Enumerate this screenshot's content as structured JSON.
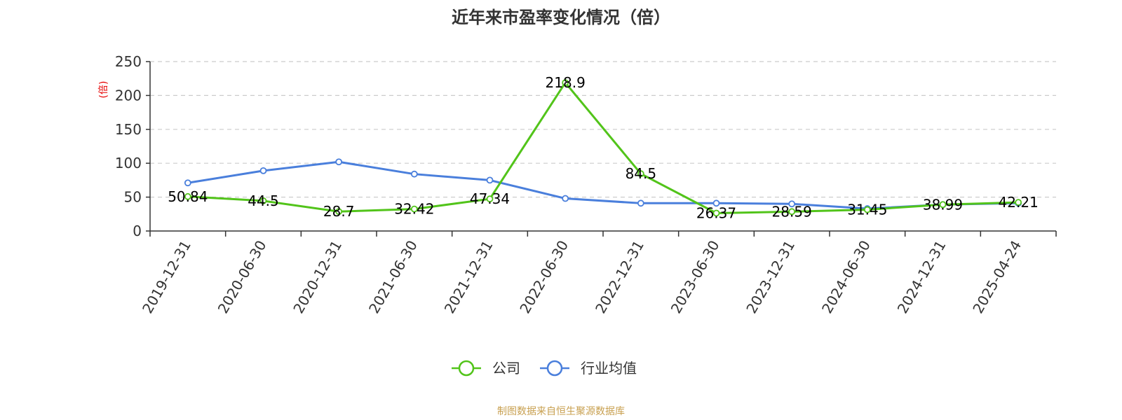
{
  "chart_data": {
    "type": "line",
    "title": "近年来市盈率变化情况（倍）",
    "ylabel": "(倍)",
    "xlabel": "",
    "categories": [
      "2019-12-31",
      "2020-06-30",
      "2020-12-31",
      "2021-06-30",
      "2021-12-31",
      "2022-06-30",
      "2022-12-31",
      "2023-06-30",
      "2023-12-31",
      "2024-06-30",
      "2024-12-31",
      "2025-04-24"
    ],
    "ylim": [
      0,
      250
    ],
    "yticks": [
      0,
      50,
      100,
      150,
      200,
      250
    ],
    "grid": true,
    "legend_position": "bottom",
    "series": [
      {
        "name": "公司",
        "color": "#52c41a",
        "values": [
          50.84,
          44.5,
          28.7,
          32.42,
          47.34,
          218.9,
          84.5,
          26.37,
          28.59,
          31.45,
          38.99,
          42.21
        ],
        "labels": [
          "50.84",
          "44.5",
          "28.7",
          "32.42",
          "47.34",
          "218.9",
          "84.5",
          "26.37",
          "28.59",
          "31.45",
          "38.99",
          "42.21"
        ]
      },
      {
        "name": "行业均值",
        "color": "#4a7fdc",
        "values": [
          71,
          89,
          102,
          84,
          75,
          48,
          41,
          41,
          40,
          33,
          39,
          41
        ]
      }
    ]
  },
  "source": "制图数据来自恒生聚源数据库"
}
